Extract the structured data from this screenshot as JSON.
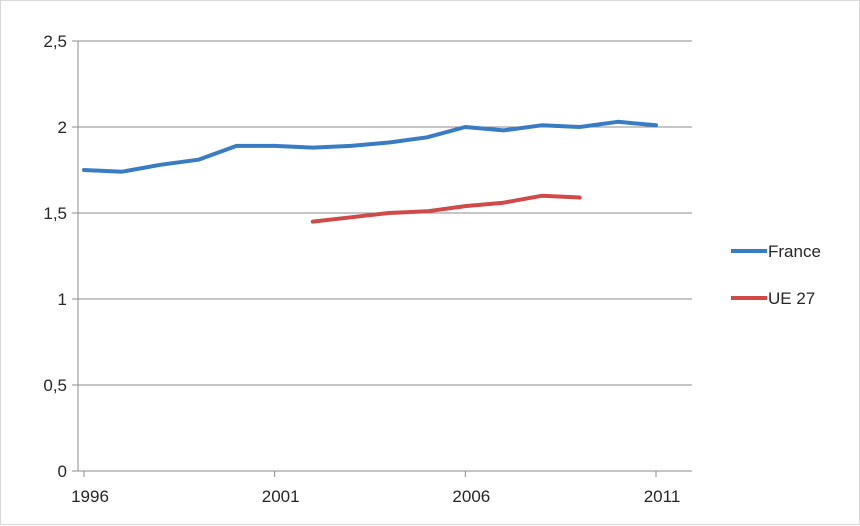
{
  "chart_data": {
    "type": "line",
    "x": [
      1996,
      1997,
      1998,
      1999,
      2000,
      2001,
      2002,
      2003,
      2004,
      2005,
      2006,
      2007,
      2008,
      2009,
      2010,
      2011
    ],
    "series": [
      {
        "name": "France",
        "color": "#3a7cc4",
        "values": [
          1.75,
          1.74,
          1.78,
          1.81,
          1.89,
          1.89,
          1.88,
          1.89,
          1.91,
          1.94,
          2.0,
          1.98,
          2.01,
          2.0,
          2.03,
          2.01
        ]
      },
      {
        "name": "UE 27",
        "color": "#d04a4a",
        "values": [
          null,
          null,
          null,
          null,
          null,
          null,
          1.45,
          1.475,
          1.5,
          1.51,
          1.54,
          1.56,
          1.6,
          1.59,
          null,
          null
        ]
      }
    ],
    "y_ticks": [
      "0",
      "0,5",
      "1",
      "1,5",
      "2",
      "2,5"
    ],
    "y_tick_values": [
      0,
      0.5,
      1,
      1.5,
      2,
      2.5
    ],
    "x_ticks": [
      "1996",
      "2001",
      "2006",
      "2011"
    ],
    "x_tick_values": [
      1996,
      2001,
      2006,
      2011
    ],
    "ylim": [
      0,
      2.5
    ],
    "xlim": [
      1996,
      2011
    ],
    "grid": "horizontal",
    "legend_position": "right"
  }
}
